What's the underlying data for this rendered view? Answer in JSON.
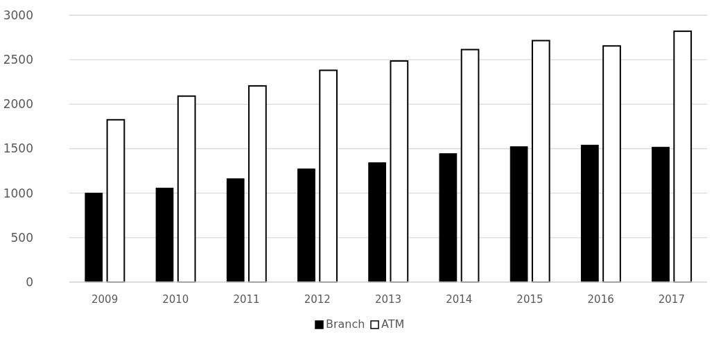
{
  "chart_data": {
    "type": "bar",
    "categories": [
      "2009",
      "2010",
      "2011",
      "2012",
      "2013",
      "2014",
      "2015",
      "2016",
      "2017"
    ],
    "series": [
      {
        "name": "Branch",
        "color": "#000000",
        "values": [
          1000,
          1057,
          1162,
          1272,
          1342,
          1444,
          1522,
          1540,
          1517
        ]
      },
      {
        "name": "ATM",
        "color": "#ffffff",
        "values": [
          1825,
          2091,
          2206,
          2381,
          2486,
          2614,
          2715,
          2655,
          2820
        ]
      }
    ],
    "ylim": [
      0,
      3000
    ],
    "yticks": [
      0,
      500,
      1000,
      1500,
      2000,
      2500,
      3000
    ],
    "grid": "y",
    "legend": "bottom"
  }
}
